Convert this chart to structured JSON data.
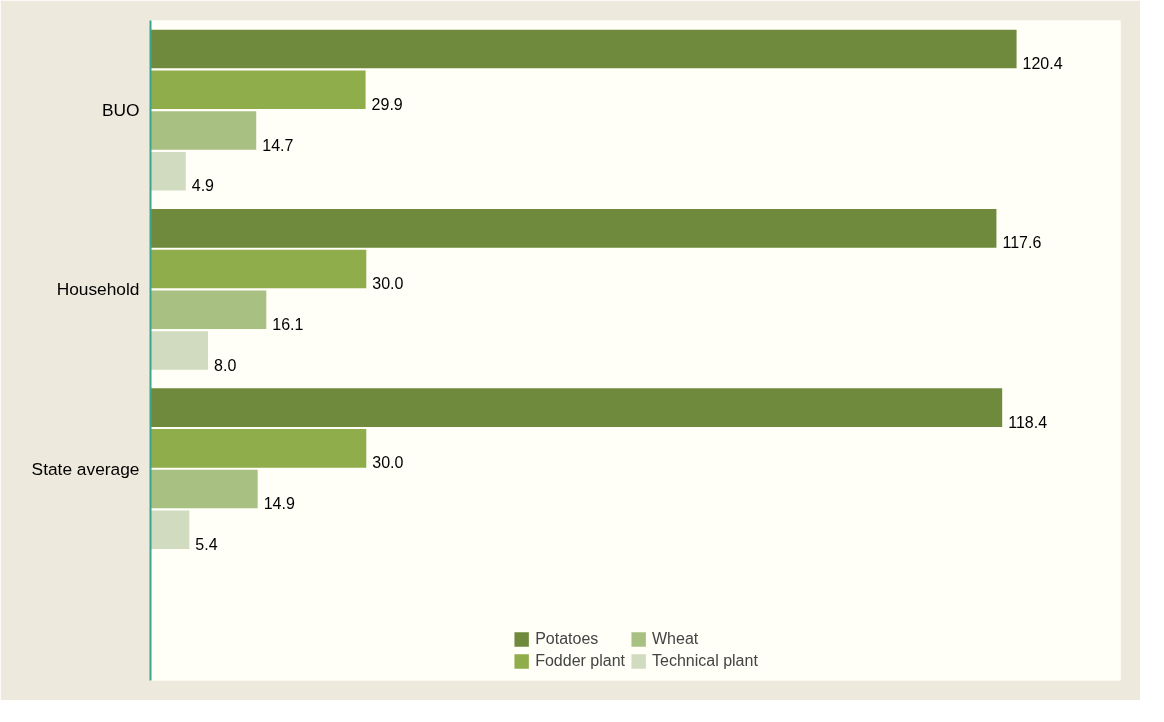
{
  "chart_data": {
    "type": "bar",
    "orientation": "horizontal",
    "categories": [
      "BUO",
      "Household",
      "State average"
    ],
    "series": [
      {
        "name": "Potatoes",
        "color": "#6f8a3c",
        "values": [
          120.4,
          117.6,
          118.4
        ],
        "value_labels": [
          "120.4",
          "117.6",
          "118.4"
        ]
      },
      {
        "name": "Fodder plant",
        "color": "#8fad4a",
        "values": [
          29.9,
          30.0,
          30.0
        ],
        "value_labels": [
          "29.9",
          "30.0",
          "30.0"
        ]
      },
      {
        "name": "Wheat",
        "color": "#a9c083",
        "values": [
          14.7,
          16.1,
          14.9
        ],
        "value_labels": [
          "14.7",
          "16.1",
          "14.9"
        ]
      },
      {
        "name": "Technical plant",
        "color": "#d0dbbf",
        "values": [
          4.9,
          8.0,
          5.4
        ],
        "value_labels": [
          "4.9",
          "8.0",
          "5.4"
        ]
      }
    ],
    "legend": "bottom"
  }
}
